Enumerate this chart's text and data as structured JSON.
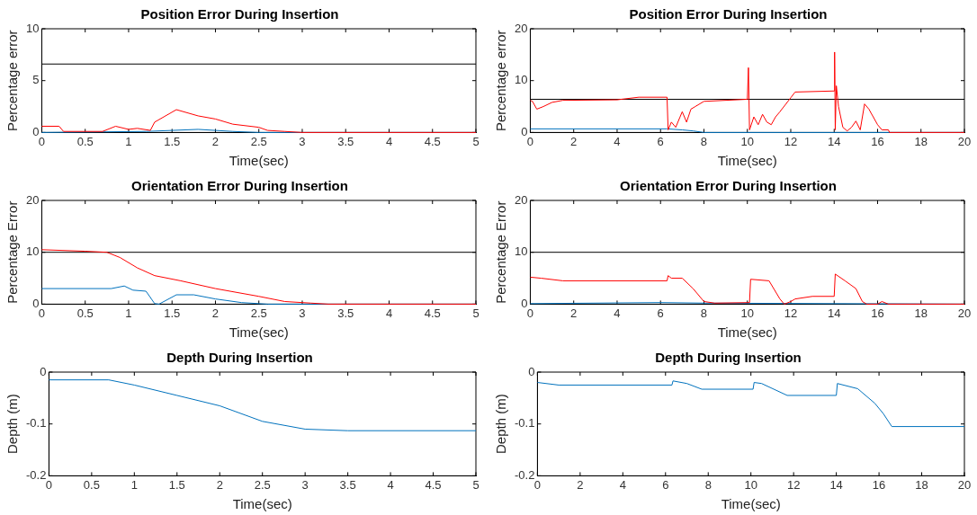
{
  "chart_data": [
    {
      "type": "line",
      "title": "Position Error During Insertion",
      "xlabel": "Time(sec)",
      "ylabel": "Percentage error",
      "xlim": [
        0,
        5
      ],
      "xticks": [
        0,
        0.5,
        1,
        1.5,
        2,
        2.5,
        3,
        3.5,
        4,
        4.5,
        5
      ],
      "ylim": [
        0,
        10
      ],
      "yticks": [
        0,
        5,
        10
      ],
      "ref_lines": [
        {
          "axis": "y",
          "value": 6.6,
          "color": "#000000"
        }
      ],
      "series": [
        {
          "color": "#ff0000",
          "x": [
            0,
            0.2,
            0.25,
            0.7,
            0.85,
            1,
            1.1,
            1.25,
            1.3,
            1.55,
            1.8,
            2,
            2.2,
            2.5,
            2.6,
            2.8,
            3,
            5
          ],
          "values": [
            0.6,
            0.6,
            0.1,
            0.1,
            0.6,
            0.3,
            0.4,
            0.2,
            1.0,
            2.2,
            1.6,
            1.3,
            0.8,
            0.5,
            0.2,
            0.1,
            0,
            0
          ]
        },
        {
          "color": "#0072bd",
          "x": [
            0,
            1.2,
            1.5,
            1.8,
            2.2,
            2.5,
            5
          ],
          "values": [
            0,
            0.1,
            0.2,
            0.3,
            0.1,
            0,
            0
          ]
        }
      ]
    },
    {
      "type": "line",
      "title": "Position Error During Insertion",
      "xlabel": "Time(sec)",
      "ylabel": "Percentage error",
      "xlim": [
        0,
        20
      ],
      "xticks": [
        0,
        2,
        4,
        6,
        8,
        10,
        12,
        14,
        16,
        18,
        20
      ],
      "ylim": [
        0,
        20
      ],
      "yticks": [
        0,
        10,
        20
      ],
      "ref_lines": [
        {
          "axis": "y",
          "value": 6.4,
          "color": "#000000"
        }
      ],
      "series": [
        {
          "color": "#ff0000",
          "x": [
            0,
            0.1,
            0.3,
            0.6,
            1,
            1.5,
            4,
            5,
            6.3,
            6.35,
            6.5,
            6.7,
            6.9,
            7,
            7.2,
            7.4,
            7.6,
            8,
            10,
            10.05,
            10.1,
            10.3,
            10.5,
            10.7,
            10.9,
            11.1,
            11.3,
            11.5,
            12,
            12.2,
            14,
            14.02,
            14.05,
            14.1,
            14.2,
            14.4,
            14.6,
            14.8,
            15,
            15.2,
            15.4,
            15.6,
            16,
            16.2,
            16.5,
            16.55,
            20
          ],
          "values": [
            6.2,
            6,
            4.5,
            5,
            5.8,
            6.2,
            6.3,
            6.8,
            6.8,
            0.5,
            2,
            1,
            3,
            4,
            2,
            4.5,
            5,
            6,
            6.4,
            12.5,
            0.5,
            3,
            1.5,
            3.5,
            2,
            1.5,
            3,
            4,
            6.7,
            7.8,
            8,
            15.5,
            0.5,
            9,
            5,
            1,
            0.3,
            1,
            2.2,
            0.5,
            5.5,
            4.5,
            1.5,
            0.5,
            0.5,
            0,
            0
          ]
        },
        {
          "color": "#0072bd",
          "x": [
            0,
            6.3,
            7,
            7.5,
            8,
            20
          ],
          "values": [
            0.7,
            0.7,
            0.5,
            0.3,
            0,
            0
          ]
        }
      ]
    },
    {
      "type": "line",
      "title": "Orientation Error During Insertion",
      "xlabel": "Time(sec)",
      "ylabel": "Percentage Error",
      "xlim": [
        0,
        5
      ],
      "xticks": [
        0,
        0.5,
        1,
        1.5,
        2,
        2.5,
        3,
        3.5,
        4,
        4.5,
        5
      ],
      "ylim": [
        0,
        20
      ],
      "yticks": [
        0,
        10,
        20
      ],
      "ref_lines": [
        {
          "axis": "y",
          "value": 10,
          "color": "#000000"
        }
      ],
      "series": [
        {
          "color": "#ff0000",
          "x": [
            0,
            0.5,
            0.75,
            0.9,
            1.1,
            1.3,
            1.6,
            2,
            2.5,
            2.8,
            3.1,
            3.3,
            5
          ],
          "values": [
            10.5,
            10.2,
            10,
            9,
            7,
            5.5,
            4.5,
            3,
            1.5,
            0.5,
            0.2,
            0,
            0
          ]
        },
        {
          "color": "#0072bd",
          "x": [
            0,
            0.8,
            0.95,
            1.05,
            1.2,
            1.3,
            1.35,
            1.55,
            1.75,
            2,
            2.3,
            2.6,
            5
          ],
          "values": [
            3,
            3,
            3.5,
            2.7,
            2.5,
            0.1,
            0,
            1.8,
            1.8,
            1,
            0.3,
            0,
            0
          ]
        }
      ]
    },
    {
      "type": "line",
      "title": "Orientation Error During Insertion",
      "xlabel": "Time(sec)",
      "ylabel": "Percentage Error",
      "xlim": [
        0,
        20
      ],
      "xticks": [
        0,
        2,
        4,
        6,
        8,
        10,
        12,
        14,
        16,
        18,
        20
      ],
      "ylim": [
        0,
        20
      ],
      "yticks": [
        0,
        10,
        20
      ],
      "ref_lines": [
        {
          "axis": "y",
          "value": 10,
          "color": "#000000"
        }
      ],
      "series": [
        {
          "color": "#ff0000",
          "x": [
            0,
            0.5,
            1.5,
            6.3,
            6.35,
            6.5,
            7,
            7.5,
            8,
            8.5,
            10.1,
            10.15,
            11,
            11.5,
            11.7,
            12,
            12.2,
            13,
            14,
            14.05,
            14.5,
            15,
            15.3,
            15.5,
            16,
            16.2,
            16.5,
            20
          ],
          "values": [
            5.2,
            5,
            4.5,
            4.5,
            5.5,
            5,
            5,
            3,
            0.5,
            0.2,
            0.3,
            4.8,
            4.5,
            1,
            0,
            0.5,
            1,
            1.5,
            1.5,
            5.8,
            4.5,
            3,
            0.5,
            0,
            0,
            0.5,
            0,
            0
          ]
        },
        {
          "color": "#0072bd",
          "x": [
            0,
            6,
            8,
            20
          ],
          "values": [
            0.1,
            0.3,
            0.2,
            0
          ]
        }
      ]
    },
    {
      "type": "line",
      "title": "Depth During Insertion",
      "xlabel": "Time(sec)",
      "ylabel": "Depth (m)",
      "xlim": [
        0,
        5
      ],
      "xticks": [
        0,
        0.5,
        1,
        1.5,
        2,
        2.5,
        3,
        3.5,
        4,
        4.5,
        5
      ],
      "ylim": [
        -0.2,
        0
      ],
      "yticks": [
        -0.2,
        -0.1,
        0
      ],
      "series": [
        {
          "color": "#0072bd",
          "x": [
            0,
            0.7,
            1,
            1.5,
            2,
            2.5,
            3,
            3.5,
            5
          ],
          "values": [
            -0.015,
            -0.015,
            -0.025,
            -0.045,
            -0.065,
            -0.095,
            -0.11,
            -0.113,
            -0.113
          ]
        }
      ]
    },
    {
      "type": "line",
      "title": "Depth During Insertion",
      "xlabel": "Time(sec)",
      "ylabel": "Depth (m)",
      "xlim": [
        0,
        20
      ],
      "xticks": [
        0,
        2,
        4,
        6,
        8,
        10,
        12,
        14,
        16,
        18,
        20
      ],
      "ylim": [
        -0.2,
        0
      ],
      "yticks": [
        -0.2,
        -0.1,
        0
      ],
      "series": [
        {
          "color": "#0072bd",
          "x": [
            0,
            1,
            6.3,
            6.35,
            7,
            7.7,
            10.1,
            10.15,
            10.5,
            11.7,
            14,
            14.05,
            15,
            15.8,
            16.2,
            16.6,
            20
          ],
          "values": [
            -0.02,
            -0.025,
            -0.025,
            -0.017,
            -0.022,
            -0.033,
            -0.033,
            -0.02,
            -0.022,
            -0.045,
            -0.045,
            -0.022,
            -0.032,
            -0.06,
            -0.08,
            -0.105,
            -0.105
          ]
        }
      ]
    }
  ]
}
